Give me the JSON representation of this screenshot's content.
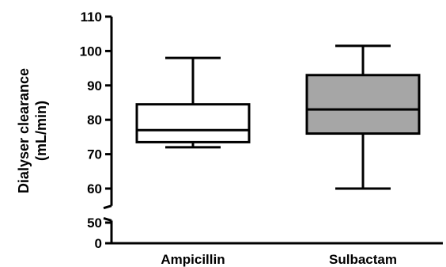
{
  "chart_data": {
    "type": "box",
    "ylabel_line1": "Dialyser clearance",
    "ylabel_line2": "(mL/min)",
    "y_ticks_upper": [
      60,
      70,
      80,
      90,
      100,
      110
    ],
    "y_ticks_lower": [
      0,
      50
    ],
    "ylim_upper": [
      55,
      110
    ],
    "ylim_lower": [
      0,
      55
    ],
    "axis_break": true,
    "categories": [
      "Ampicillin",
      "Sulbactam"
    ],
    "series": [
      {
        "category": "Ampicillin",
        "min": 72,
        "q1": 73.5,
        "median": 77,
        "q3": 84.5,
        "max": 98,
        "fill": "#ffffff"
      },
      {
        "category": "Sulbactam",
        "min": 60,
        "q1": 76,
        "median": 83,
        "q3": 93,
        "max": 101.5,
        "fill": "#a6a6a6"
      }
    ]
  }
}
